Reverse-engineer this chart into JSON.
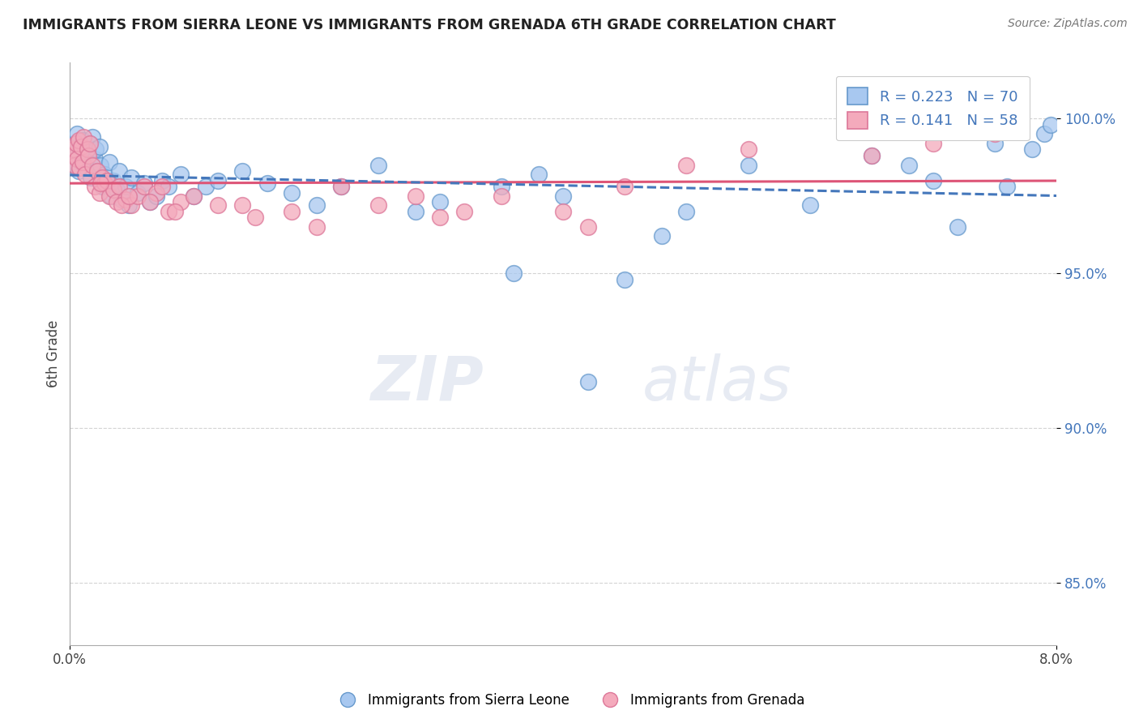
{
  "title": "IMMIGRANTS FROM SIERRA LEONE VS IMMIGRANTS FROM GRENADA 6TH GRADE CORRELATION CHART",
  "source": "Source: ZipAtlas.com",
  "ylabel": "6th Grade",
  "yticks": [
    85.0,
    90.0,
    95.0,
    100.0
  ],
  "ytick_labels": [
    "85.0%",
    "90.0%",
    "95.0%",
    "100.0%"
  ],
  "xlim": [
    0.0,
    8.0
  ],
  "ylim": [
    83.0,
    101.8
  ],
  "legend_label1": "Immigrants from Sierra Leone",
  "legend_label2": "Immigrants from Grenada",
  "R1": 0.223,
  "N1": 70,
  "R2": 0.141,
  "N2": 58,
  "color_blue": "#A8C8F0",
  "color_pink": "#F4AABC",
  "edge_blue": "#6699CC",
  "edge_pink": "#DD7799",
  "trendline_blue": "#4477BB",
  "trendline_pink": "#DD5577",
  "sierra_leone_x": [
    0.02,
    0.03,
    0.04,
    0.05,
    0.06,
    0.07,
    0.08,
    0.09,
    0.1,
    0.11,
    0.12,
    0.13,
    0.15,
    0.16,
    0.17,
    0.18,
    0.2,
    0.21,
    0.22,
    0.24,
    0.25,
    0.26,
    0.28,
    0.3,
    0.32,
    0.33,
    0.35,
    0.38,
    0.4,
    0.42,
    0.45,
    0.48,
    0.5,
    0.55,
    0.6,
    0.65,
    0.7,
    0.75,
    0.8,
    0.9,
    1.0,
    1.1,
    1.2,
    1.4,
    1.6,
    1.8,
    2.0,
    2.2,
    2.5,
    2.8,
    3.0,
    3.5,
    3.6,
    3.8,
    4.0,
    4.5,
    5.0,
    5.5,
    6.0,
    6.5,
    7.0,
    7.2,
    7.5,
    7.8,
    7.9,
    7.95,
    4.2,
    4.8,
    6.8,
    7.6
  ],
  "sierra_leone_y": [
    99.0,
    98.5,
    99.2,
    98.8,
    99.5,
    98.3,
    99.1,
    98.6,
    99.3,
    98.7,
    99.0,
    98.4,
    98.9,
    99.2,
    98.1,
    99.4,
    98.7,
    99.0,
    98.3,
    99.1,
    98.5,
    97.8,
    98.2,
    97.9,
    98.6,
    97.5,
    98.0,
    97.7,
    98.3,
    97.4,
    97.8,
    97.2,
    98.1,
    97.6,
    97.9,
    97.3,
    97.5,
    98.0,
    97.8,
    98.2,
    97.5,
    97.8,
    98.0,
    98.3,
    97.9,
    97.6,
    97.2,
    97.8,
    98.5,
    97.0,
    97.3,
    97.8,
    95.0,
    98.2,
    97.5,
    94.8,
    97.0,
    98.5,
    97.2,
    98.8,
    98.0,
    96.5,
    99.2,
    99.0,
    99.5,
    99.8,
    91.5,
    96.2,
    98.5,
    97.8
  ],
  "grenada_x": [
    0.02,
    0.03,
    0.04,
    0.05,
    0.06,
    0.07,
    0.08,
    0.09,
    0.1,
    0.11,
    0.12,
    0.14,
    0.15,
    0.16,
    0.18,
    0.2,
    0.22,
    0.24,
    0.26,
    0.28,
    0.3,
    0.32,
    0.35,
    0.38,
    0.4,
    0.45,
    0.5,
    0.55,
    0.6,
    0.7,
    0.8,
    0.9,
    1.0,
    1.2,
    1.5,
    1.8,
    2.0,
    2.5,
    3.0,
    3.5,
    4.0,
    4.5,
    5.0,
    5.5,
    0.25,
    0.42,
    0.48,
    0.65,
    0.75,
    0.85,
    1.4,
    2.2,
    2.8,
    3.2,
    4.2,
    6.5,
    7.0,
    7.5
  ],
  "grenada_y": [
    98.8,
    99.0,
    98.5,
    99.2,
    98.7,
    99.3,
    98.4,
    99.1,
    98.6,
    99.4,
    98.2,
    99.0,
    98.8,
    99.2,
    98.5,
    97.8,
    98.3,
    97.6,
    98.1,
    97.9,
    98.0,
    97.5,
    97.7,
    97.3,
    97.8,
    97.4,
    97.2,
    97.5,
    97.8,
    97.6,
    97.0,
    97.3,
    97.5,
    97.2,
    96.8,
    97.0,
    96.5,
    97.2,
    96.8,
    97.5,
    97.0,
    97.8,
    98.5,
    99.0,
    97.9,
    97.2,
    97.5,
    97.3,
    97.8,
    97.0,
    97.2,
    97.8,
    97.5,
    97.0,
    96.5,
    98.8,
    99.2,
    99.5
  ],
  "watermark_top": "ZIP",
  "watermark_bot": "atlas"
}
